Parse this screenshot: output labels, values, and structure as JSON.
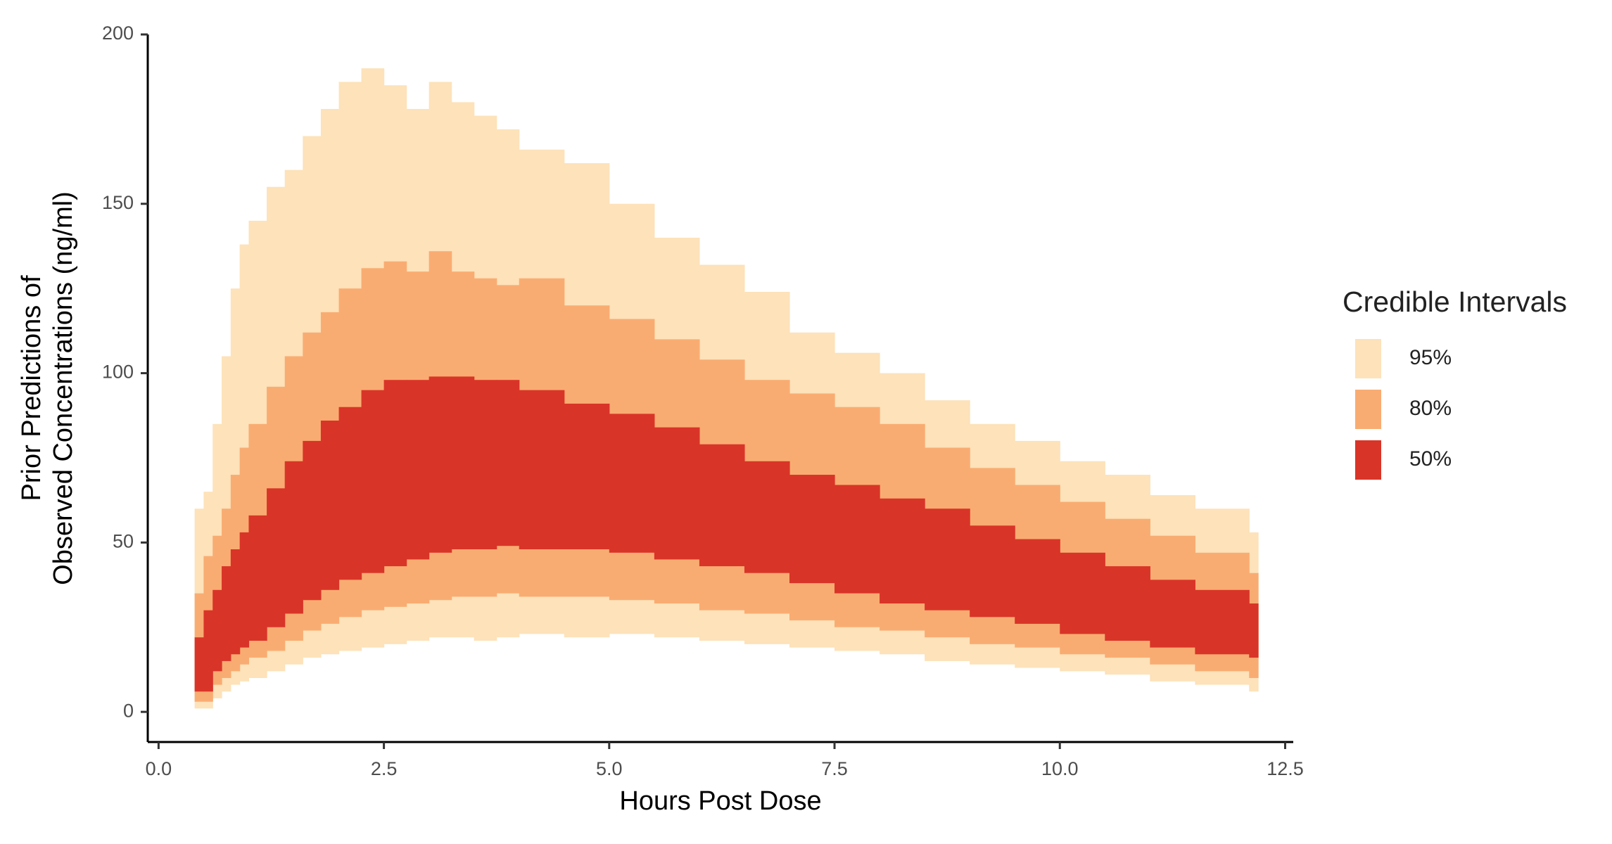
{
  "chart_data": {
    "type": "interval-band",
    "xlabel": "Hours Post Dose",
    "ylabel": [
      "Prior Predictions of",
      "Observed Concentrations (ng/ml)"
    ],
    "legend_title": "Credible Intervals",
    "legend_position": "right",
    "x": [
      0.4,
      0.5,
      0.6,
      0.7,
      0.8,
      0.9,
      1.0,
      1.2,
      1.4,
      1.6,
      1.8,
      2.0,
      2.25,
      2.5,
      2.75,
      3.0,
      3.25,
      3.5,
      3.75,
      4.0,
      4.5,
      5.0,
      5.5,
      6.0,
      6.5,
      7.0,
      7.5,
      8.0,
      8.5,
      9.0,
      9.5,
      10.0,
      10.5,
      11.0,
      11.5,
      12.1
    ],
    "series": [
      {
        "name": "95%",
        "color": "#fde2ba",
        "lower": [
          1,
          1,
          4,
          6,
          8,
          9,
          10,
          12,
          14,
          16,
          17,
          18,
          19,
          20,
          21,
          22,
          22,
          21,
          22,
          23,
          22,
          23,
          22,
          21,
          20,
          19,
          18,
          17,
          15,
          14,
          13,
          12,
          11,
          9,
          8,
          6
        ],
        "upper": [
          60,
          65,
          85,
          105,
          125,
          138,
          145,
          155,
          160,
          170,
          178,
          186,
          190,
          185,
          178,
          186,
          180,
          176,
          172,
          166,
          162,
          150,
          140,
          132,
          124,
          112,
          106,
          100,
          92,
          85,
          80,
          74,
          70,
          64,
          60,
          53
        ]
      },
      {
        "name": "80%",
        "color": "#f9ac72",
        "lower": [
          3,
          3,
          8,
          10,
          12,
          14,
          16,
          18,
          21,
          24,
          26,
          28,
          30,
          31,
          32,
          33,
          34,
          34,
          35,
          34,
          34,
          33,
          32,
          30,
          29,
          27,
          25,
          24,
          22,
          20,
          19,
          17,
          16,
          14,
          12,
          10
        ],
        "upper": [
          35,
          46,
          52,
          60,
          70,
          78,
          85,
          96,
          105,
          112,
          118,
          125,
          131,
          133,
          130,
          136,
          130,
          128,
          126,
          128,
          120,
          116,
          110,
          104,
          98,
          94,
          90,
          85,
          78,
          72,
          67,
          62,
          57,
          52,
          47,
          41
        ]
      },
      {
        "name": "50%",
        "color": "#d93428",
        "lower": [
          6,
          6,
          12,
          15,
          17,
          19,
          21,
          25,
          29,
          33,
          36,
          39,
          41,
          43,
          45,
          47,
          48,
          48,
          49,
          48,
          48,
          47,
          45,
          43,
          41,
          38,
          35,
          32,
          30,
          28,
          26,
          23,
          21,
          19,
          17,
          16
        ],
        "upper": [
          22,
          30,
          36,
          43,
          48,
          53,
          58,
          66,
          74,
          80,
          86,
          90,
          95,
          98,
          98,
          99,
          99,
          98,
          98,
          95,
          91,
          88,
          84,
          79,
          74,
          70,
          67,
          63,
          60,
          55,
          51,
          47,
          43,
          39,
          36,
          32
        ]
      }
    ],
    "xlim": [
      -0.12,
      12.59
    ],
    "ylim": [
      -8.9,
      200
    ],
    "xticks": [
      {
        "value": 0,
        "label": "0.0"
      },
      2.5,
      {
        "value": 5,
        "label": "5.0"
      },
      7.5,
      {
        "value": 10,
        "label": "10.0"
      },
      12.5
    ],
    "yticks": [
      0,
      50,
      100,
      150,
      200
    ],
    "grid": false
  }
}
